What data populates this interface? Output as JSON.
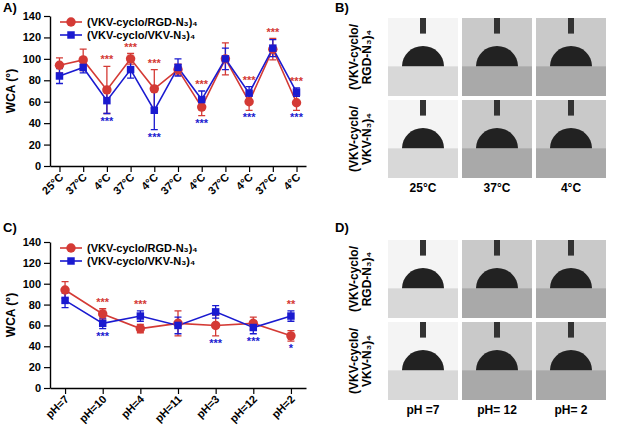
{
  "panel_labels": [
    "A)",
    "B)",
    "C)",
    "D)"
  ],
  "chart_data": [
    {
      "type": "line",
      "y_label": "WCA (°)",
      "categories": [
        "25°C",
        "37°C",
        "4°C",
        "37°C",
        "4°C",
        "37°C",
        "4°C",
        "37°C",
        "4°C",
        "37°C",
        "4°C"
      ],
      "ylim": [
        0,
        140
      ],
      "yticks": [
        0,
        20,
        40,
        60,
        80,
        100,
        120,
        140
      ],
      "legend": "upper left",
      "series": [
        {
          "name": "(VKV-cyclo/RGD-N₃)₄",
          "color": "#d43a35",
          "marker": "circle",
          "values": [
            94,
            99,
            71,
            100,
            72,
            90,
            55,
            100,
            60,
            109,
            59
          ],
          "errors": [
            7,
            10,
            22,
            5,
            18,
            5,
            8,
            15,
            8,
            10,
            7
          ],
          "significance": [
            null,
            null,
            "***",
            "***",
            "***",
            null,
            "***",
            null,
            "***",
            "***",
            "***"
          ]
        },
        {
          "name": "(VKV-cyclo/VKV-N₃)₄",
          "color": "#1a1ad0",
          "marker": "square",
          "values": [
            84,
            92,
            61,
            90,
            52,
            92,
            62,
            100,
            68,
            110,
            69
          ],
          "errors": [
            7,
            5,
            12,
            8,
            18,
            8,
            8,
            10,
            6,
            8,
            4
          ],
          "significance": [
            null,
            null,
            "***",
            null,
            "***",
            null,
            "***",
            null,
            "***",
            null,
            "***"
          ]
        }
      ]
    },
    {
      "type": "line",
      "y_label": "WCA (°)",
      "categories": [
        "pH=7",
        "pH=10",
        "pH=4",
        "pH=11",
        "pH=3",
        "pH=12",
        "pH=2"
      ],
      "ylim": [
        0,
        140
      ],
      "yticks": [
        0,
        20,
        40,
        60,
        80,
        100,
        120,
        140
      ],
      "legend": "upper left",
      "series": [
        {
          "name": "(VKV-cyclo/RGD-N₃)₄",
          "color": "#d43a35",
          "marker": "circle",
          "values": [
            94,
            71,
            57,
            62,
            60,
            62,
            50
          ],
          "errors": [
            8,
            5,
            4,
            12,
            10,
            6,
            5
          ],
          "significance": [
            null,
            "***",
            "***",
            null,
            null,
            null,
            "**"
          ]
        },
        {
          "name": "(VKV-cyclo/VKV-N₃)₄",
          "color": "#1a1ad0",
          "marker": "square",
          "values": [
            84,
            62,
            69,
            60,
            73,
            58,
            69
          ],
          "errors": [
            7,
            5,
            5,
            8,
            6,
            6,
            5
          ],
          "significance": [
            null,
            "***",
            null,
            null,
            "***",
            "***",
            "*"
          ]
        }
      ]
    }
  ],
  "photo_panels": [
    {
      "row_labels": [
        "(VKV-cyclo/ RGD-N₃)₄",
        "(VKV-cyclo/ VKV-N₃)₄"
      ],
      "column_labels": [
        "25°C",
        "37°C",
        "4°C"
      ]
    },
    {
      "row_labels": [
        "(VKV-cyclo/ RGD-N₃)₄",
        "(VKV-cyclo/ VKV-N₃)₄"
      ],
      "column_labels": [
        "pH =7",
        "pH= 12",
        "pH= 2"
      ]
    }
  ]
}
